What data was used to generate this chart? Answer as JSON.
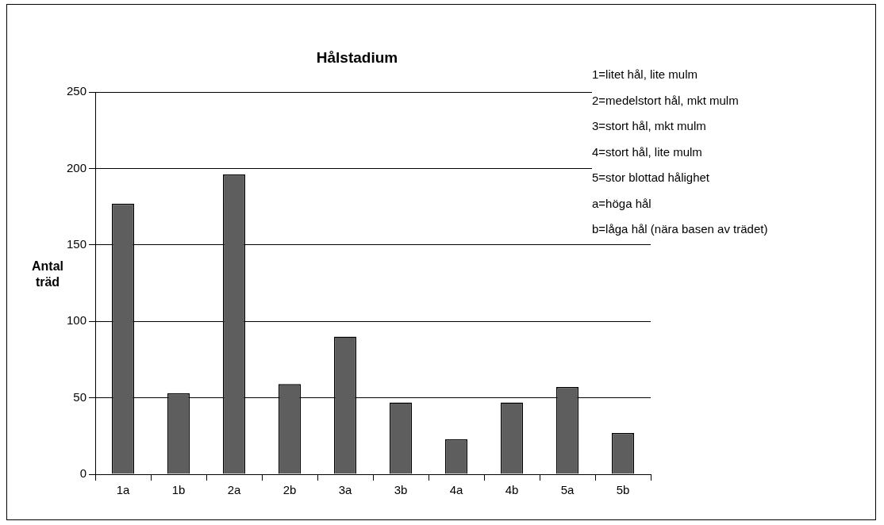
{
  "chart_data": {
    "type": "bar",
    "title": "Hålstadium",
    "ylabel": "Antal träd",
    "categories": [
      "1a",
      "1b",
      "2a",
      "2b",
      "3a",
      "3b",
      "4a",
      "4b",
      "5a",
      "5b"
    ],
    "values": [
      177,
      53,
      196,
      59,
      90,
      47,
      23,
      47,
      57,
      27
    ],
    "color": "#5e5e5e",
    "ylim": [
      0,
      250
    ],
    "yticks": [
      0,
      50,
      100,
      150,
      200,
      250
    ],
    "grid": "y",
    "annotations": [
      "1=litet hål, lite mulm",
      "2=medelstort hål, mkt mulm",
      "3=stort hål, mkt mulm",
      "4=stort hål, lite mulm",
      "5=stor blottad hålighet",
      "a=höga hål",
      "b=låga hål (nära basen av trädet)"
    ]
  }
}
